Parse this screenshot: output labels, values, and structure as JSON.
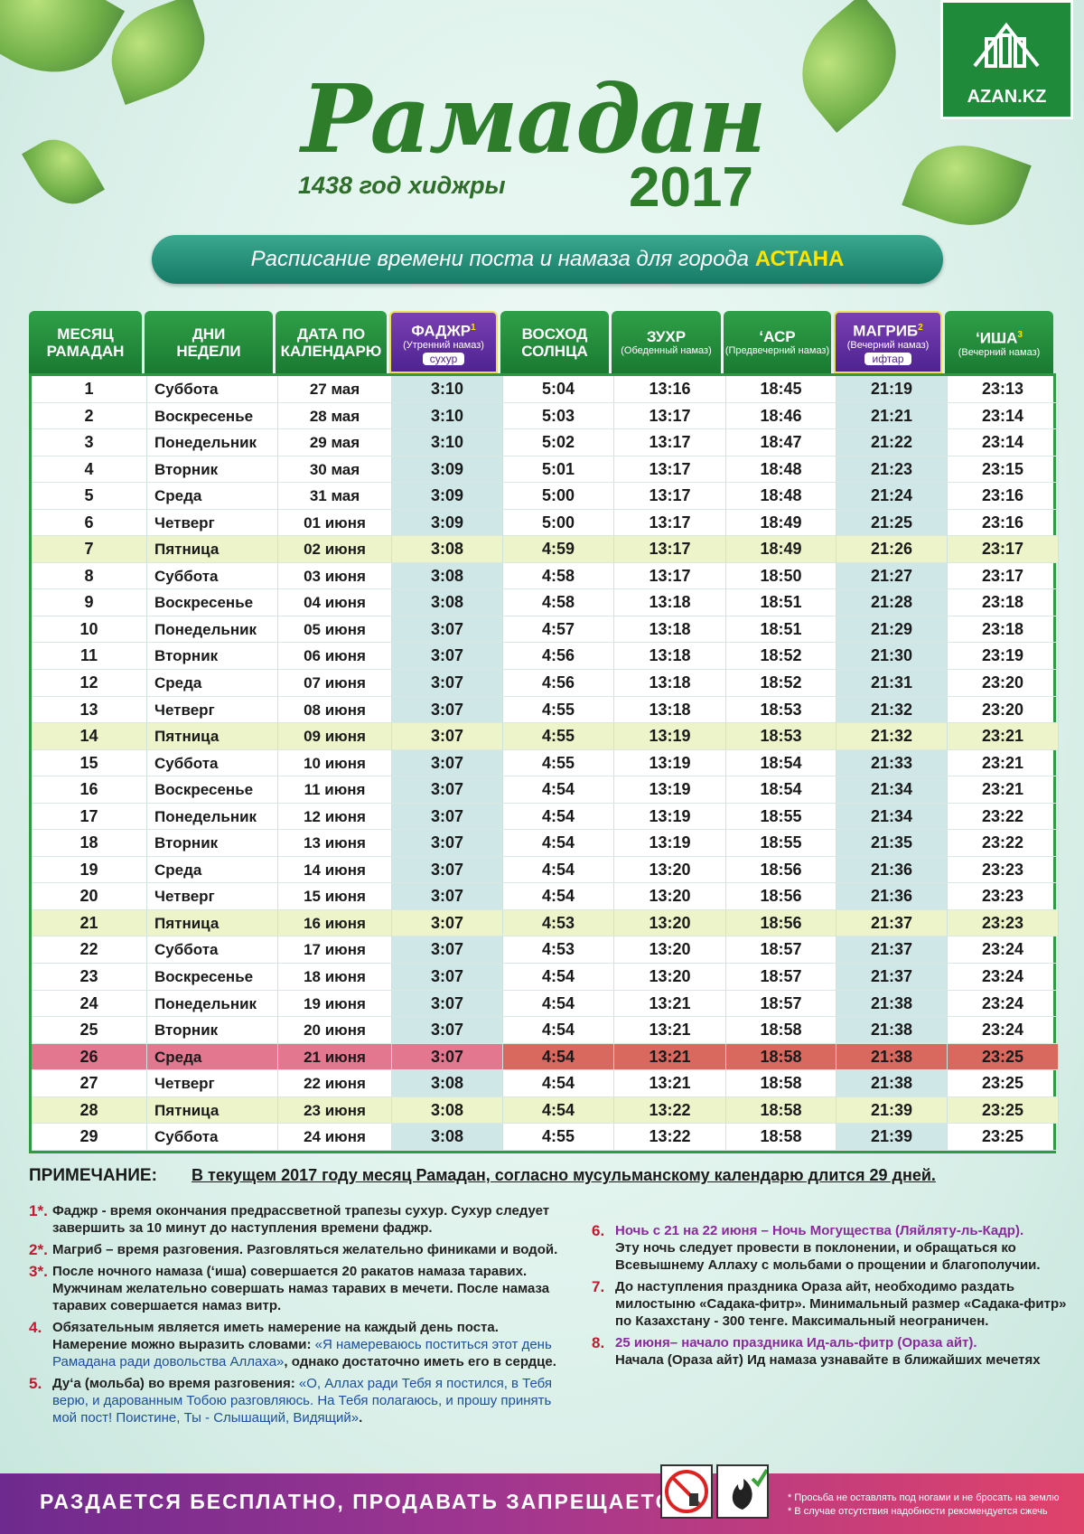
{
  "logo": "AZAN.KZ",
  "header": {
    "title": "Рамадан",
    "year": "2017",
    "hijri": "1438 год хиджры",
    "subtitle": "Расписание времени поста и намаза  для города ",
    "city": "АСТАНА"
  },
  "table": {
    "columns": [
      {
        "lines": [
          "МЕСЯЦ",
          "РАМАДАН"
        ]
      },
      {
        "lines": [
          "ДНИ",
          "НЕДЕЛИ"
        ]
      },
      {
        "lines": [
          "ДАТА ПО",
          "КАЛЕНДАРЮ"
        ]
      },
      {
        "lines": [
          "ФАДЖР"
        ],
        "sup": "1",
        "sub": "(Утренний намаз)",
        "tag": "сухур"
      },
      {
        "lines": [
          "ВОСХОД",
          "СОЛНЦА"
        ]
      },
      {
        "lines": [
          "ЗУХР"
        ],
        "sub": "(Обеденный намаз)"
      },
      {
        "lines": [
          "ʻАСР"
        ],
        "sub": "(Предвечерний намаз)"
      },
      {
        "lines": [
          "МАГРИБ"
        ],
        "sup": "2",
        "sub": "(Вечерний намаз)",
        "tag": "ифтар"
      },
      {
        "lines": [
          "ʻИША"
        ],
        "sup": "3",
        "sub": "(Вечерний намаз)"
      }
    ],
    "rows": [
      [
        "1",
        "Суббота",
        "27 мая",
        "3:10",
        "5:04",
        "13:16",
        "18:45",
        "21:19",
        "23:13"
      ],
      [
        "2",
        "Воскресенье",
        "28 мая",
        "3:10",
        "5:03",
        "13:17",
        "18:46",
        "21:21",
        "23:14"
      ],
      [
        "3",
        "Понедельник",
        "29 мая",
        "3:10",
        "5:02",
        "13:17",
        "18:47",
        "21:22",
        "23:14"
      ],
      [
        "4",
        "Вторник",
        "30 мая",
        "3:09",
        "5:01",
        "13:17",
        "18:48",
        "21:23",
        "23:15"
      ],
      [
        "5",
        "Среда",
        "31 мая",
        "3:09",
        "5:00",
        "13:17",
        "18:48",
        "21:24",
        "23:16"
      ],
      [
        "6",
        "Четверг",
        "01 июня",
        "3:09",
        "5:00",
        "13:17",
        "18:49",
        "21:25",
        "23:16"
      ],
      [
        "7",
        "Пятница",
        "02 июня",
        "3:08",
        "4:59",
        "13:17",
        "18:49",
        "21:26",
        "23:17"
      ],
      [
        "8",
        "Суббота",
        "03 июня",
        "3:08",
        "4:58",
        "13:17",
        "18:50",
        "21:27",
        "23:17"
      ],
      [
        "9",
        "Воскресенье",
        "04 июня",
        "3:08",
        "4:58",
        "13:18",
        "18:51",
        "21:28",
        "23:18"
      ],
      [
        "10",
        "Понедельник",
        "05 июня",
        "3:07",
        "4:57",
        "13:18",
        "18:51",
        "21:29",
        "23:18"
      ],
      [
        "11",
        "Вторник",
        "06 июня",
        "3:07",
        "4:56",
        "13:18",
        "18:52",
        "21:30",
        "23:19"
      ],
      [
        "12",
        "Среда",
        "07 июня",
        "3:07",
        "4:56",
        "13:18",
        "18:52",
        "21:31",
        "23:20"
      ],
      [
        "13",
        "Четверг",
        "08 июня",
        "3:07",
        "4:55",
        "13:18",
        "18:53",
        "21:32",
        "23:20"
      ],
      [
        "14",
        "Пятница",
        "09 июня",
        "3:07",
        "4:55",
        "13:19",
        "18:53",
        "21:32",
        "23:21"
      ],
      [
        "15",
        "Суббота",
        "10 июня",
        "3:07",
        "4:55",
        "13:19",
        "18:54",
        "21:33",
        "23:21"
      ],
      [
        "16",
        "Воскресенье",
        "11 июня",
        "3:07",
        "4:54",
        "13:19",
        "18:54",
        "21:34",
        "23:21"
      ],
      [
        "17",
        "Понедельник",
        "12 июня",
        "3:07",
        "4:54",
        "13:19",
        "18:55",
        "21:34",
        "23:22"
      ],
      [
        "18",
        "Вторник",
        "13 июня",
        "3:07",
        "4:54",
        "13:19",
        "18:55",
        "21:35",
        "23:22"
      ],
      [
        "19",
        "Среда",
        "14 июня",
        "3:07",
        "4:54",
        "13:20",
        "18:56",
        "21:36",
        "23:23"
      ],
      [
        "20",
        "Четверг",
        "15 июня",
        "3:07",
        "4:54",
        "13:20",
        "18:56",
        "21:36",
        "23:23"
      ],
      [
        "21",
        "Пятница",
        "16 июня",
        "3:07",
        "4:53",
        "13:20",
        "18:56",
        "21:37",
        "23:23"
      ],
      [
        "22",
        "Суббота",
        "17 июня",
        "3:07",
        "4:53",
        "13:20",
        "18:57",
        "21:37",
        "23:24"
      ],
      [
        "23",
        "Воскресенье",
        "18 июня",
        "3:07",
        "4:54",
        "13:20",
        "18:57",
        "21:37",
        "23:24"
      ],
      [
        "24",
        "Понедельник",
        "19 июня",
        "3:07",
        "4:54",
        "13:21",
        "18:57",
        "21:38",
        "23:24"
      ],
      [
        "25",
        "Вторник",
        "20 июня",
        "3:07",
        "4:54",
        "13:21",
        "18:58",
        "21:38",
        "23:24"
      ],
      [
        "26",
        "Среда",
        "21 июня",
        "3:07",
        "4:54",
        "13:21",
        "18:58",
        "21:38",
        "23:25"
      ],
      [
        "27",
        "Четверг",
        "22 июня",
        "3:08",
        "4:54",
        "13:21",
        "18:58",
        "21:38",
        "23:25"
      ],
      [
        "28",
        "Пятница",
        "23 июня",
        "3:08",
        "4:54",
        "13:22",
        "18:58",
        "21:39",
        "23:25"
      ],
      [
        "29",
        "Суббота",
        "24 июня",
        "3:08",
        "4:55",
        "13:22",
        "18:58",
        "21:39",
        "23:25"
      ]
    ]
  },
  "notes": {
    "label": "ПРИМЕЧАНИЕ:",
    "summary": "В текущем 2017 году месяц Рамадан, согласно мусульманскому календарю длится 29 дней.",
    "left": [
      {
        "marker": "1*.",
        "text": "Фаджр - время окончания предрассветной трапезы сухур. Сухур следует завершить за 10 минут до наступления времени фаджр."
      },
      {
        "marker": "2*.",
        "text": "Магриб – время разговения. Разговляться желательно финиками и водой."
      },
      {
        "marker": "3*.",
        "text": "После ночного намаза (ʻиша) совершается 20 ракатов намаза таравих. Мужчинам желательно совершать намаз таравих в мечети. После намаза таравих совершается намаз витр."
      },
      {
        "marker": "4.",
        "text": "Обязательным является иметь намерение на каждый день поста. Намерение можно выразить словами: ",
        "quote": "«Я намереваюсь поститься этот день Рамадана ради довольства Аллаха»",
        "rest": ", однако достаточно иметь его в сердце."
      },
      {
        "marker": "5.",
        "text": "Дуʻа (мольба) во время разговения: ",
        "quote": "«О, Аллах ради Тебя я постился, в Тебя верю, и дарованным Тобою разговляюсь. На Тебя полагаюсь, и прошу принять  мой пост! Поистине, Ты - Слышащий, Видящий»",
        "rest": "."
      }
    ],
    "right": [
      {
        "marker": "6.",
        "headline": "Ночь с 21 на 22 июня – Ночь Могущества (Ляйляту-ль-Кадр).",
        "text": "Эту ночь следует провести в поклонении, и обращаться ко Всевышнему Аллаху с мольбами о прощении и благополучии."
      },
      {
        "marker": "7.",
        "text": "До наступления праздника Ораза айт, необходимо раздать милостыню «Садака-фитр». Минимальный размер «Садака-фитр» по Казахстану - 300 тенге. Максимальный неограничен."
      },
      {
        "marker": "8.",
        "headline": "25 июня– начало праздника Ид-аль-фитр (Ораза айт).",
        "text": "Начала (Ораза айт) Ид намаза узнавайте в ближайших мечетях"
      }
    ]
  },
  "footer": {
    "slogan": "РАЗДАЕТСЯ БЕСПЛАТНО, ПРОДАВАТЬ ЗАПРЕЩАЕТСЯ!",
    "remarks": [
      "* Просьба не оставлять под ногами и не бросать на землю",
      "* В случае отсутствия надобности рекомендуется сжечь"
    ]
  }
}
